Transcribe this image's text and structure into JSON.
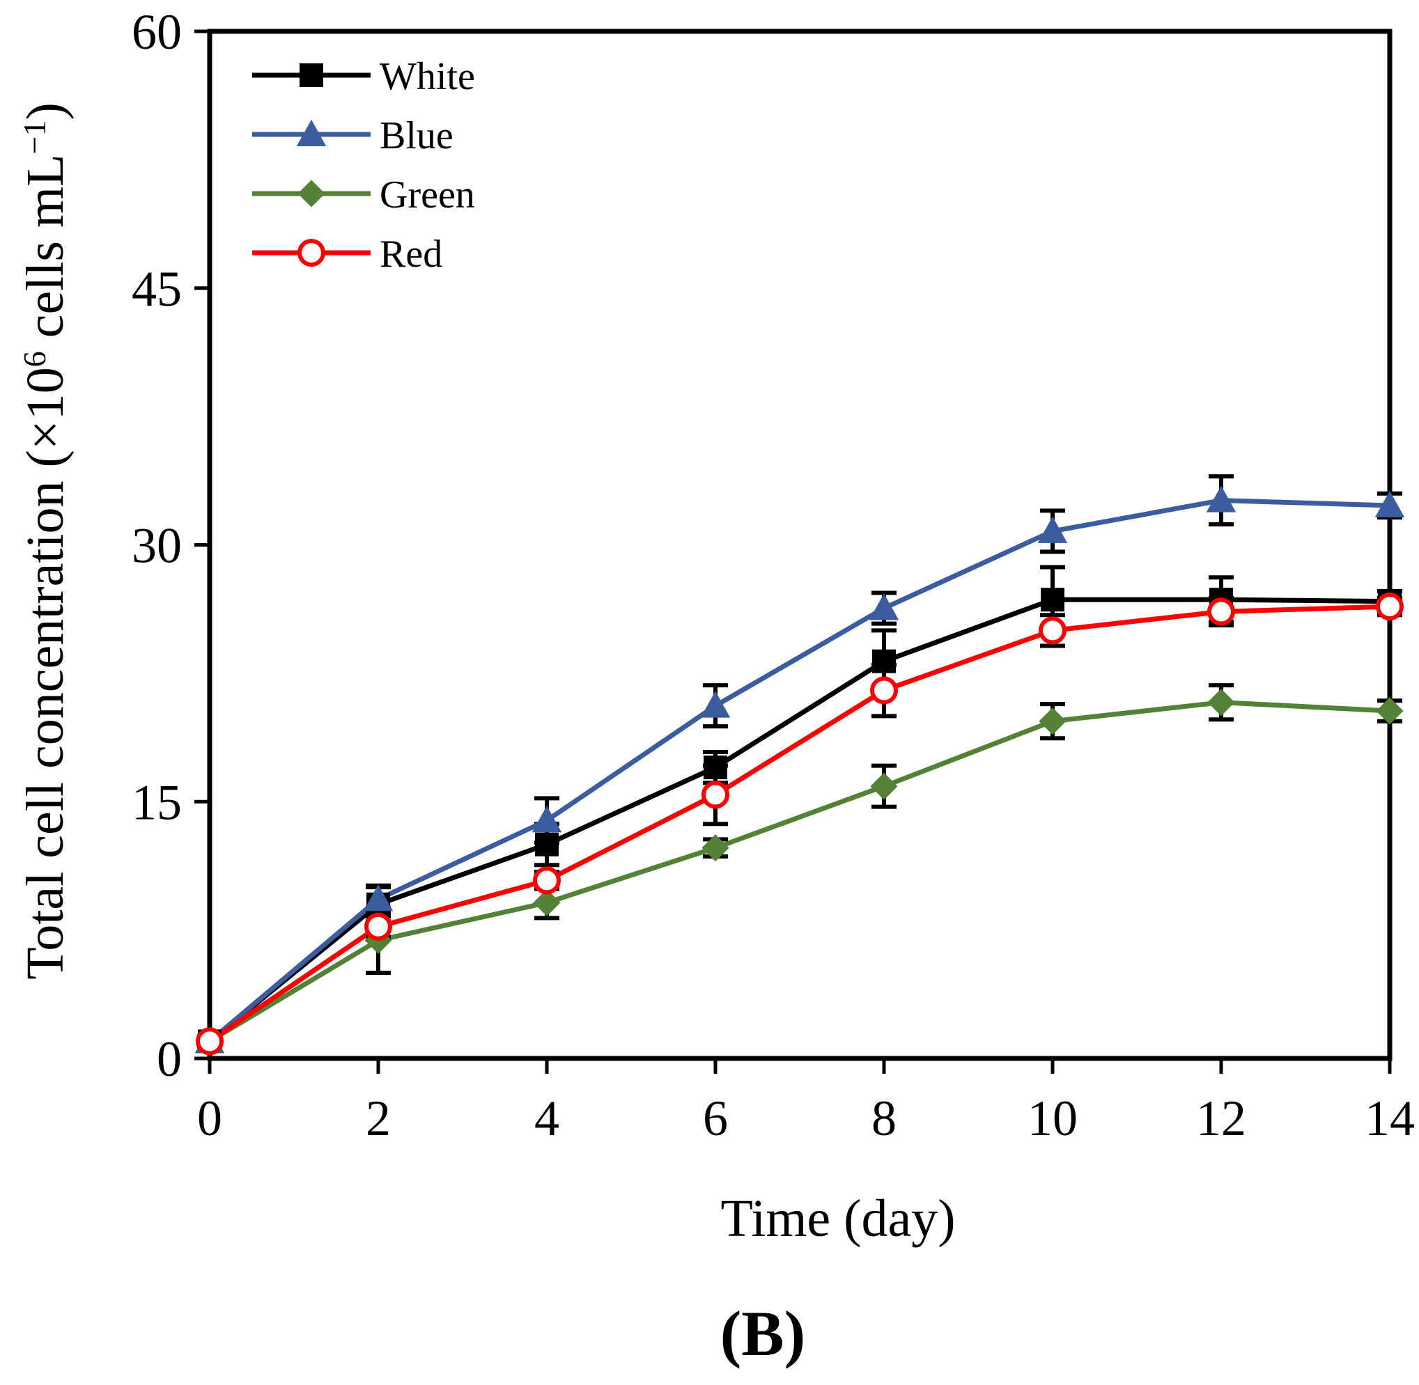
{
  "chart_data": {
    "type": "line",
    "title": "",
    "panel_label": "(B)",
    "xlabel": "Time (day)",
    "ylabel": {
      "prefix": "Total cell concentration (×10",
      "exp": "6",
      "middle": " cells mL",
      "exp2": "−1",
      "suffix": ")"
    },
    "xlim": [
      0,
      14
    ],
    "ylim": [
      0,
      60
    ],
    "xticks": [
      "0",
      "2",
      "4",
      "6",
      "8",
      "10",
      "12",
      "14"
    ],
    "xtick_values": [
      0,
      2,
      4,
      6,
      8,
      10,
      12,
      14
    ],
    "yticks": [
      "0",
      "15",
      "30",
      "45",
      "60"
    ],
    "ytick_values": [
      0,
      15,
      30,
      45,
      60
    ],
    "grid": false,
    "legend_position": "top-left",
    "x": [
      0,
      2,
      4,
      6,
      8,
      10,
      12,
      14
    ],
    "series": [
      {
        "name": "White",
        "color": "#000000",
        "marker": "square",
        "values": [
          1.0,
          9.0,
          12.5,
          17.0,
          23.2,
          26.8,
          26.8,
          26.7
        ],
        "errors": [
          0.3,
          1.0,
          1.2,
          0.9,
          1.8,
          1.9,
          1.3,
          0.6
        ]
      },
      {
        "name": "Blue",
        "color": "#3B5DA0",
        "marker": "triangle",
        "values": [
          1.0,
          9.3,
          13.9,
          20.6,
          26.3,
          30.8,
          32.6,
          32.3
        ],
        "errors": [
          0.2,
          0.8,
          1.3,
          1.2,
          0.9,
          1.2,
          1.4,
          0.7
        ]
      },
      {
        "name": "Green",
        "color": "#538135",
        "marker": "diamond",
        "values": [
          1.0,
          6.9,
          9.1,
          12.3,
          15.9,
          19.7,
          20.8,
          20.3
        ],
        "errors": [
          0.2,
          1.9,
          0.9,
          0.5,
          1.2,
          1.0,
          1.0,
          0.6
        ]
      },
      {
        "name": "Red",
        "color": "#FF0000",
        "marker": "circle-open",
        "values": [
          1.0,
          7.7,
          10.4,
          15.4,
          21.5,
          25.0,
          26.1,
          26.4
        ],
        "errors": [
          0.2,
          0.6,
          0.5,
          1.7,
          1.5,
          0.9,
          0.8,
          0.5
        ]
      }
    ]
  }
}
